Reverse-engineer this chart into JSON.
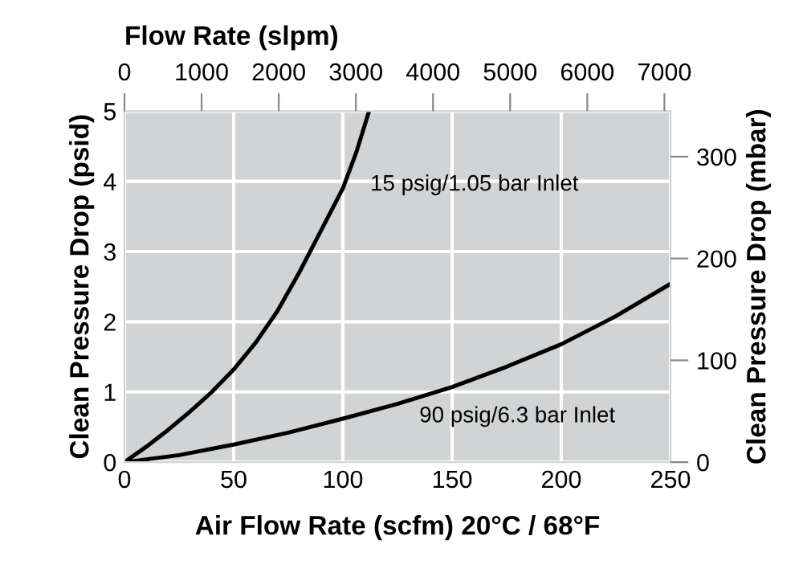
{
  "chart_data": {
    "type": "line",
    "xlabel": "Air Flow Rate (scfm) 20°C / 68°F",
    "ylabel": "Clean Pressure Drop (psid)",
    "y2label": "Clean Pressure Drop (mbar)",
    "x2label": "Flow Rate (slpm)",
    "series": [
      {
        "color": "#000000",
        "x": [
          0,
          10,
          20,
          30,
          40,
          50,
          60,
          70,
          80,
          90,
          100,
          106,
          112
        ],
        "values": [
          0,
          0.22,
          0.46,
          0.72,
          1.0,
          1.32,
          1.7,
          2.15,
          2.7,
          3.3,
          3.9,
          4.4,
          5.0
        ]
      },
      {
        "color": "#000000",
        "x": [
          0,
          25,
          50,
          75,
          100,
          125,
          150,
          175,
          200,
          225,
          250
        ],
        "values": [
          0,
          0.1,
          0.25,
          0.42,
          0.62,
          0.83,
          1.07,
          1.36,
          1.68,
          2.08,
          2.54
        ]
      }
    ],
    "annotations": [
      "15 psig/1.05 bar Inlet",
      "90 psig/6.3 bar Inlet"
    ],
    "xlim": [
      0,
      250
    ],
    "xticks": [
      0,
      50,
      100,
      150,
      200,
      250
    ],
    "ylim": [
      0,
      5
    ],
    "yticks": [
      0,
      1,
      2,
      3,
      4,
      5
    ],
    "y2lim": [
      0,
      344.7
    ],
    "y2ticks": [
      0,
      100,
      200,
      300
    ],
    "x2lim": [
      0,
      7079
    ],
    "x2ticks": [
      0,
      1000,
      2000,
      3000,
      4000,
      5000,
      6000,
      7000
    ],
    "grid": true,
    "marker": "none",
    "line_style": "solid",
    "legend": false
  }
}
